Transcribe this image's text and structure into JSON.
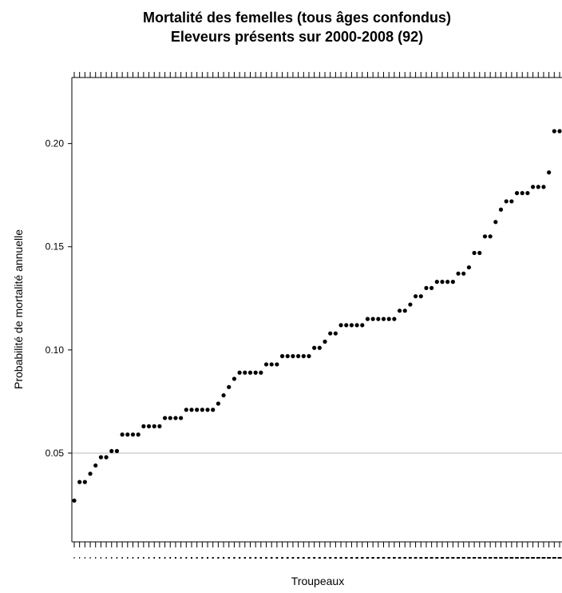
{
  "chart_data": {
    "type": "scatter",
    "title": "Mortalité des femelles (tous âges confondus)",
    "subtitle": "Eleveurs présents sur 2000-2008 (92)",
    "xlabel": "Troupeaux",
    "ylabel": "Probabilité de mortalité annuelle",
    "ylim": [
      0.007,
      0.232
    ],
    "yticks": [
      0.05,
      0.1,
      0.15,
      0.2
    ],
    "ytick_labels": [
      "0.05",
      "0.10",
      "0.15",
      "0.20"
    ],
    "grid": "horizontal line at 0.05",
    "point_color": "#000000",
    "grid_color": "#b8b8b8",
    "x": [
      1,
      2,
      3,
      4,
      5,
      6,
      7,
      8,
      9,
      10,
      11,
      12,
      13,
      14,
      15,
      16,
      17,
      18,
      19,
      20,
      21,
      22,
      23,
      24,
      25,
      26,
      27,
      28,
      29,
      30,
      31,
      32,
      33,
      34,
      35,
      36,
      37,
      38,
      39,
      40,
      41,
      42,
      43,
      44,
      45,
      46,
      47,
      48,
      49,
      50,
      51,
      52,
      53,
      54,
      55,
      56,
      57,
      58,
      59,
      60,
      61,
      62,
      63,
      64,
      65,
      66,
      67,
      68,
      69,
      70,
      71,
      72,
      73,
      74,
      75,
      76,
      77,
      78,
      79,
      80,
      81,
      82,
      83,
      84,
      85,
      86,
      87,
      88,
      89,
      90,
      91,
      92
    ],
    "values": [
      0.027,
      0.036,
      0.036,
      0.04,
      0.044,
      0.048,
      0.048,
      0.051,
      0.051,
      0.059,
      0.059,
      0.059,
      0.059,
      0.063,
      0.063,
      0.063,
      0.063,
      0.067,
      0.067,
      0.067,
      0.067,
      0.071,
      0.071,
      0.071,
      0.071,
      0.071,
      0.071,
      0.074,
      0.078,
      0.082,
      0.086,
      0.089,
      0.089,
      0.089,
      0.089,
      0.089,
      0.093,
      0.093,
      0.093,
      0.097,
      0.097,
      0.097,
      0.097,
      0.097,
      0.097,
      0.101,
      0.101,
      0.104,
      0.108,
      0.108,
      0.112,
      0.112,
      0.112,
      0.112,
      0.112,
      0.115,
      0.115,
      0.115,
      0.115,
      0.115,
      0.115,
      0.119,
      0.119,
      0.122,
      0.126,
      0.126,
      0.13,
      0.13,
      0.133,
      0.133,
      0.133,
      0.133,
      0.137,
      0.137,
      0.14,
      0.147,
      0.147,
      0.155,
      0.155,
      0.162,
      0.168,
      0.172,
      0.172,
      0.176,
      0.176,
      0.176,
      0.179,
      0.179,
      0.179,
      0.186,
      0.206,
      0.206
    ]
  }
}
